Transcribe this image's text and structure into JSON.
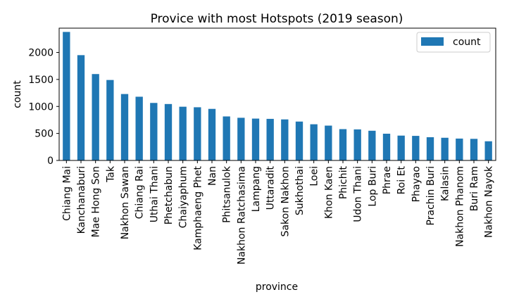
{
  "chart_data": {
    "type": "bar",
    "title": "Provice with most Hotspots (2019 season)",
    "xlabel": "province",
    "ylabel": "count",
    "ylim": [
      0,
      2450
    ],
    "yticks": [
      0,
      500,
      1000,
      1500,
      2000
    ],
    "grid": false,
    "legend_position": "top-right",
    "colors": {
      "bar": "#1f77b4"
    },
    "categories": [
      "Chiang Mai",
      "Kanchanaburi",
      "Mae Hong Son",
      "Tak",
      "Nakhon Sawan",
      "Chiang Rai",
      "Uthai Thani",
      "Phetchabun",
      "Chaiyaphum",
      "Kamphaeng Phet",
      "Nan",
      "Phitsanulok",
      "Nakhon Ratchasima",
      "Lampang",
      "Uttaradit",
      "Sakon Nakhon",
      "Sukhothai",
      "Loei",
      "Khon Kaen",
      "Phichit",
      "Udon Thani",
      "Lop Buri",
      "Phrae",
      "Roi Et",
      "Phayao",
      "Prachin Buri",
      "Kalasin",
      "Nakhon Phanom",
      "Buri Ram",
      "Nakhon Nayok"
    ],
    "series": [
      {
        "name": "count",
        "values": [
          2380,
          1950,
          1600,
          1490,
          1230,
          1180,
          1065,
          1045,
          995,
          985,
          955,
          815,
          790,
          775,
          770,
          760,
          720,
          670,
          645,
          580,
          575,
          550,
          495,
          460,
          455,
          430,
          420,
          405,
          400,
          355
        ]
      }
    ]
  }
}
